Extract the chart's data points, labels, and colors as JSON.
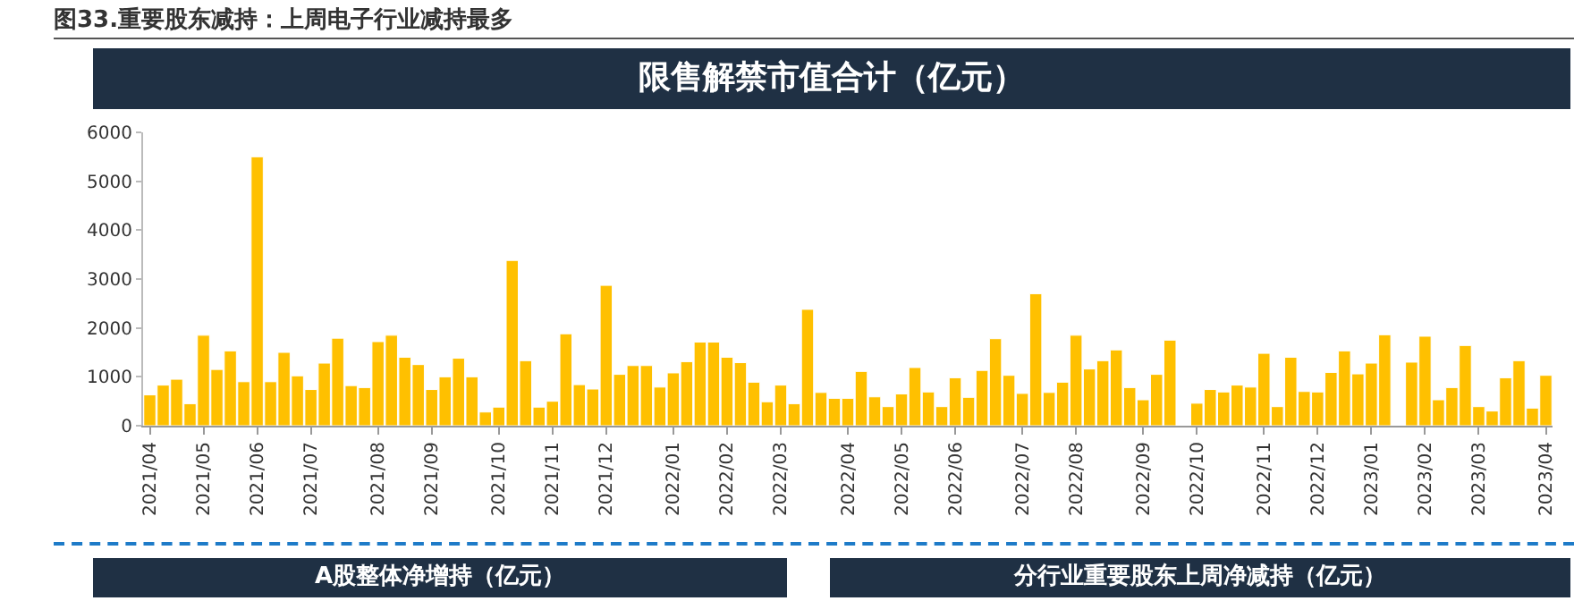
{
  "chart_data": {
    "type": "bar",
    "title": "图33.重要股东减持：上周电子行业减持最多",
    "subtitle": "限售解禁市值合计（亿元）",
    "categories": [
      "2021/04",
      null,
      null,
      null,
      "2021/05",
      null,
      null,
      null,
      "2021/06",
      null,
      null,
      null,
      "2021/07",
      null,
      null,
      null,
      null,
      "2021/08",
      null,
      null,
      null,
      "2021/09",
      null,
      null,
      null,
      null,
      "2021/10",
      null,
      null,
      null,
      "2021/11",
      null,
      null,
      null,
      "2021/12",
      null,
      null,
      null,
      null,
      "2022/01",
      null,
      null,
      null,
      "2022/02",
      null,
      null,
      null,
      "2022/03",
      null,
      null,
      null,
      null,
      "2022/04",
      null,
      null,
      null,
      "2022/05",
      null,
      null,
      null,
      "2022/06",
      null,
      null,
      null,
      null,
      "2022/07",
      null,
      null,
      null,
      "2022/08",
      null,
      null,
      null,
      null,
      "2022/09",
      null,
      null,
      null,
      "2022/10",
      null,
      null,
      null,
      null,
      "2022/11",
      null,
      null,
      null,
      "2022/12",
      null,
      null,
      null,
      "2023/01",
      null,
      null,
      null,
      "2023/02",
      null,
      null,
      null,
      "2023/03",
      null,
      null,
      null,
      null,
      "2023/04"
    ],
    "values": [
      630,
      830,
      950,
      450,
      1850,
      1150,
      1530,
      900,
      5500,
      900,
      1500,
      1020,
      740,
      1280,
      1790,
      820,
      780,
      1720,
      1850,
      1400,
      1250,
      740,
      1000,
      1380,
      1000,
      280,
      380,
      3380,
      1330,
      380,
      500,
      1880,
      840,
      750,
      2870,
      1050,
      1230,
      1230,
      790,
      1080,
      1310,
      1710,
      1710,
      1400,
      1290,
      890,
      490,
      830,
      450,
      2380,
      680,
      560,
      560,
      1110,
      590,
      390,
      650,
      1190,
      690,
      390,
      980,
      580,
      1130,
      1780,
      1030,
      660,
      2700,
      680,
      890,
      1850,
      1160,
      1330,
      1550,
      780,
      530,
      1050,
      1750,
      null,
      460,
      740,
      690,
      830,
      790,
      1480,
      390,
      1400,
      700,
      690,
      1090,
      1530,
      1060,
      1280,
      1860,
      null,
      1300,
      1830,
      530,
      780,
      1640,
      390,
      300,
      980,
      1330,
      360,
      1030
    ],
    "color": "#ffc000",
    "ylim": [
      0,
      6000
    ],
    "yticks": [
      0,
      1000,
      2000,
      3000,
      4000,
      5000,
      6000
    ],
    "grid": false,
    "legend": false,
    "annotations": [
      "A股整体净增持（亿元）",
      "分行业重要股东上周净减持（亿元）"
    ]
  }
}
